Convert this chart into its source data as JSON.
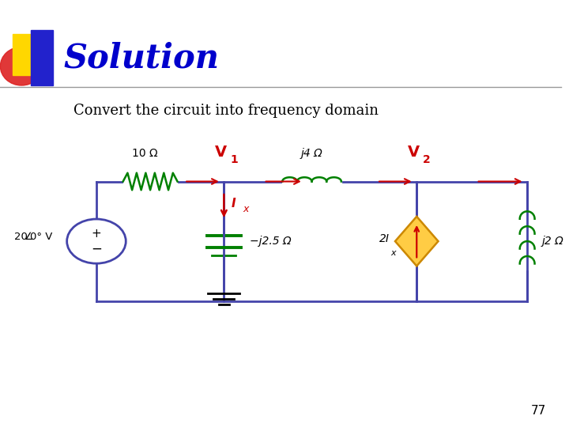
{
  "title": "Solution",
  "subtitle": "Convert the circuit into frequency domain",
  "page_number": "77",
  "title_color": "#0000CC",
  "subtitle_color": "#000000",
  "wire_color": "#4444AA",
  "component_color": "#008000",
  "arrow_color": "#CC0000",
  "dependent_source_color": "#CC8800",
  "background_color": "#FFFFFF",
  "labels": {
    "resistor": "10 Ω",
    "inductor_top": "j4 Ω",
    "capacitor": "−j2.5 Ω",
    "dep_current": "2I",
    "dep_current_sub": "x",
    "inductor_right": "j2 Ω",
    "v1": "V",
    "v1_sub": "1",
    "v2": "V",
    "v2_sub": "2",
    "ix": "I",
    "ix_sub": "x",
    "voltage_source": "20",
    "voltage_source2": "0° V"
  }
}
